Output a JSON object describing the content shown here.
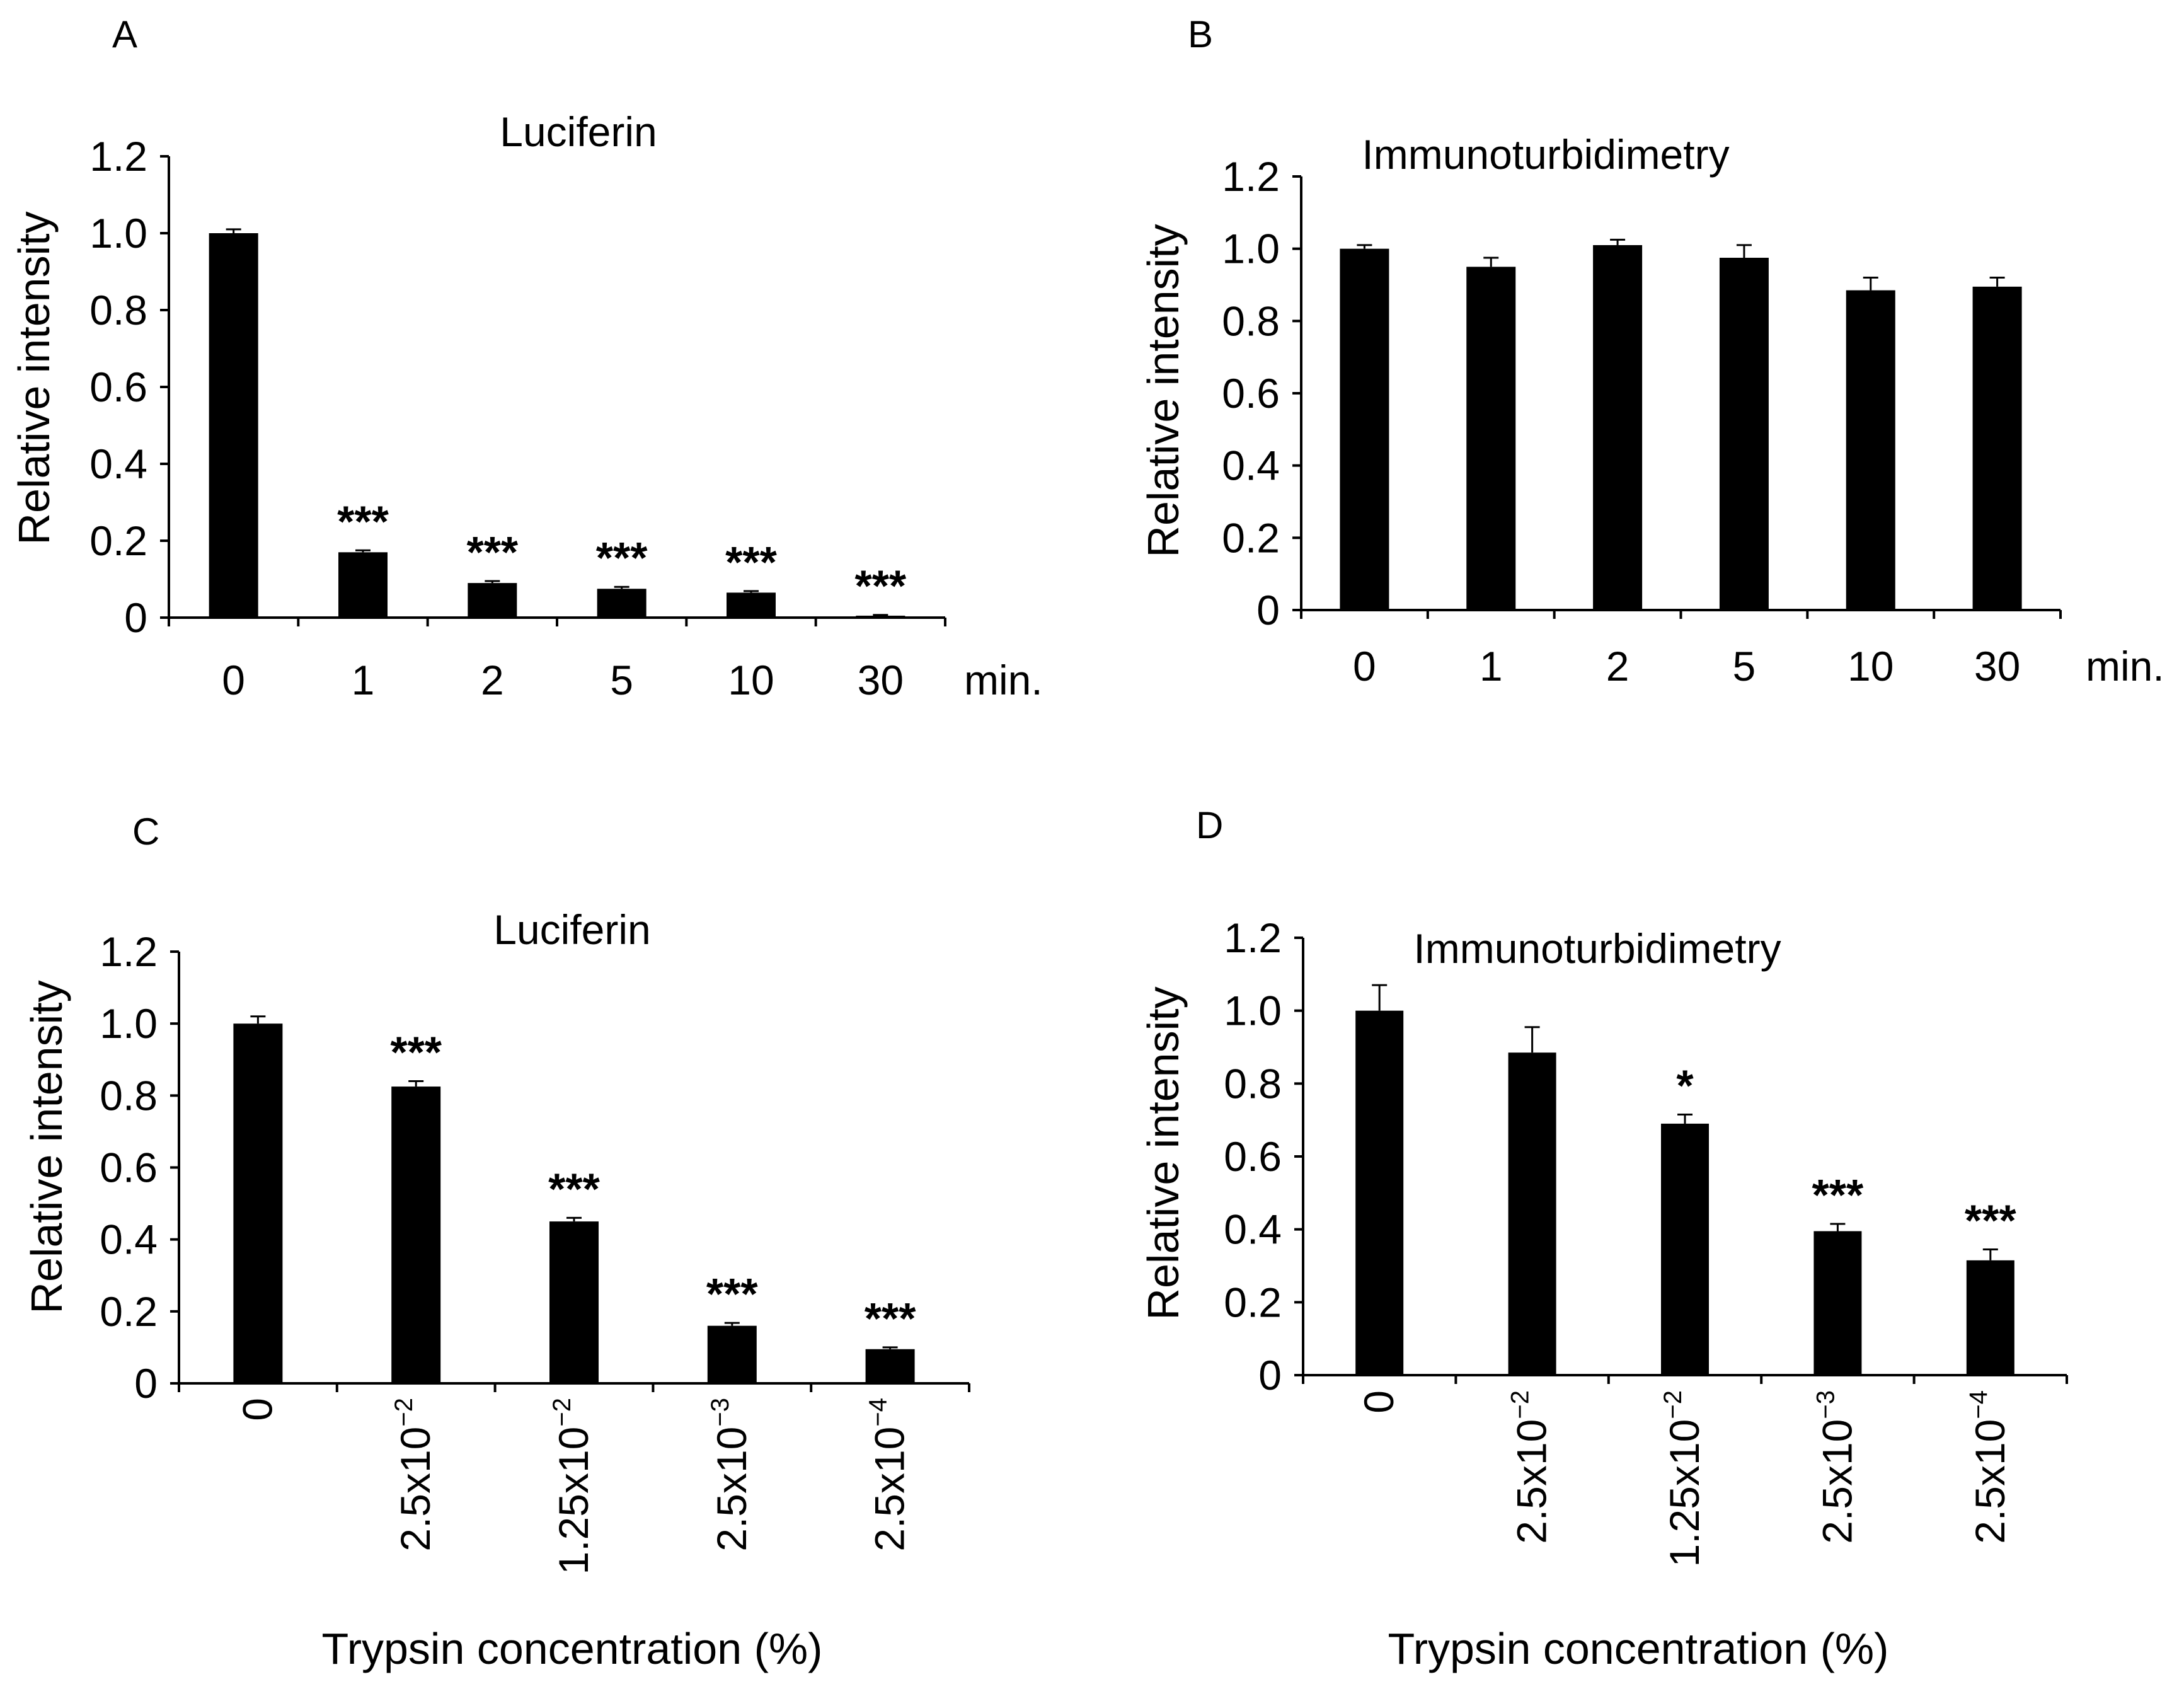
{
  "figure": {
    "panels": [
      "A",
      "B",
      "C",
      "D"
    ]
  },
  "chart_data": [
    {
      "panel": "A",
      "type": "bar",
      "title": "Luciferin",
      "ylabel": "Relative intensity",
      "xlabel": "",
      "unit": "min.",
      "ylim": [
        0,
        1.2
      ],
      "yticks": [
        "0",
        "0.2",
        "0.4",
        "0.6",
        "0.8",
        "1.0",
        "1.2"
      ],
      "categories": [
        {
          "base": "0",
          "exp": ""
        },
        {
          "base": "1",
          "exp": ""
        },
        {
          "base": "2",
          "exp": ""
        },
        {
          "base": "5",
          "exp": ""
        },
        {
          "base": "10",
          "exp": ""
        },
        {
          "base": "30",
          "exp": ""
        }
      ],
      "values": [
        1.0,
        0.17,
        0.09,
        0.075,
        0.065,
        0.005
      ],
      "errors": [
        0.01,
        0.005,
        0.005,
        0.005,
        0.004,
        0.002
      ],
      "significance": [
        "",
        "***",
        "***",
        "***",
        "***",
        "***"
      ]
    },
    {
      "panel": "B",
      "type": "bar",
      "title": "Immunoturbidimetry",
      "ylabel": "Relative intensity",
      "xlabel": "",
      "unit": "min.",
      "ylim": [
        0,
        1.2
      ],
      "yticks": [
        "0",
        "0.2",
        "0.4",
        "0.6",
        "0.8",
        "1.0",
        "1.2"
      ],
      "categories": [
        {
          "base": "0",
          "exp": ""
        },
        {
          "base": "1",
          "exp": ""
        },
        {
          "base": "2",
          "exp": ""
        },
        {
          "base": "5",
          "exp": ""
        },
        {
          "base": "10",
          "exp": ""
        },
        {
          "base": "30",
          "exp": ""
        }
      ],
      "values": [
        1.0,
        0.95,
        1.01,
        0.975,
        0.885,
        0.895
      ],
      "errors": [
        0.01,
        0.025,
        0.015,
        0.035,
        0.035,
        0.025
      ],
      "significance": [
        "",
        "",
        "",
        "",
        "",
        ""
      ]
    },
    {
      "panel": "C",
      "type": "bar",
      "title": "Luciferin",
      "ylabel": "Relative intensity",
      "xlabel": "Trypsin concentration (%)",
      "unit": "",
      "ylim": [
        0,
        1.2
      ],
      "yticks": [
        "0",
        "0.2",
        "0.4",
        "0.6",
        "0.8",
        "1.0",
        "1.2"
      ],
      "categories": [
        {
          "base": "0",
          "exp": ""
        },
        {
          "base": "2.5x10",
          "exp": "−2"
        },
        {
          "base": "1.25x10",
          "exp": "−2"
        },
        {
          "base": "2.5x10",
          "exp": "−3"
        },
        {
          "base": "2.5x10",
          "exp": "−4"
        }
      ],
      "values": [
        1.0,
        0.825,
        0.45,
        0.16,
        0.095
      ],
      "errors": [
        0.02,
        0.015,
        0.01,
        0.008,
        0.005
      ],
      "significance": [
        "",
        "***",
        "***",
        "***",
        "***"
      ]
    },
    {
      "panel": "D",
      "type": "bar",
      "title": "Immunoturbidimetry",
      "ylabel": "Relative intensity",
      "xlabel": "Trypsin concentration (%)",
      "unit": "",
      "ylim": [
        0,
        1.2
      ],
      "yticks": [
        "0",
        "0.2",
        "0.4",
        "0.6",
        "0.8",
        "1.0",
        "1.2"
      ],
      "categories": [
        {
          "base": "0",
          "exp": ""
        },
        {
          "base": "2.5x10",
          "exp": "−2"
        },
        {
          "base": "1.25x10",
          "exp": "−2"
        },
        {
          "base": "2.5x10",
          "exp": "−3"
        },
        {
          "base": "2.5x10",
          "exp": "−4"
        }
      ],
      "values": [
        1.0,
        0.885,
        0.69,
        0.395,
        0.315
      ],
      "errors": [
        0.07,
        0.07,
        0.025,
        0.02,
        0.03
      ],
      "significance": [
        "",
        "",
        "*",
        "***",
        "***"
      ]
    }
  ]
}
